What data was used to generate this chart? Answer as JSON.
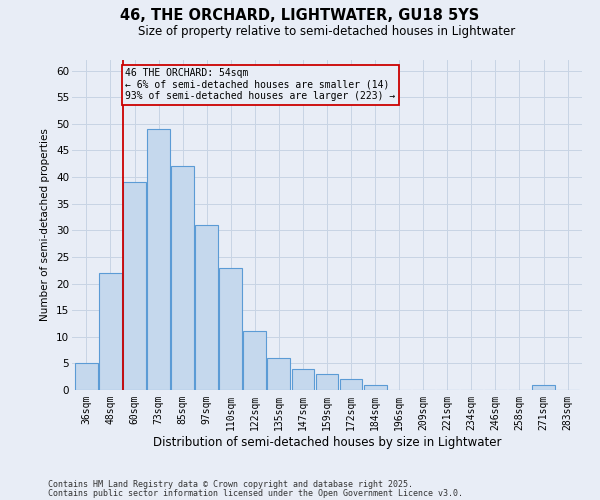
{
  "title": "46, THE ORCHARD, LIGHTWATER, GU18 5YS",
  "subtitle": "Size of property relative to semi-detached houses in Lightwater",
  "xlabel": "Distribution of semi-detached houses by size in Lightwater",
  "ylabel": "Number of semi-detached properties",
  "categories": [
    "36sqm",
    "48sqm",
    "60sqm",
    "73sqm",
    "85sqm",
    "97sqm",
    "110sqm",
    "122sqm",
    "135sqm",
    "147sqm",
    "159sqm",
    "172sqm",
    "184sqm",
    "196sqm",
    "209sqm",
    "221sqm",
    "234sqm",
    "246sqm",
    "258sqm",
    "271sqm",
    "283sqm"
  ],
  "values": [
    5,
    22,
    39,
    49,
    42,
    31,
    23,
    11,
    6,
    4,
    3,
    2,
    1,
    0,
    0,
    0,
    0,
    0,
    0,
    1,
    0
  ],
  "bar_color": "#c5d8ed",
  "bar_edge_color": "#5b9bd5",
  "grid_color": "#c8d4e4",
  "bg_color": "#e8edf6",
  "vline_x_index": 1.5,
  "annotation_text": "46 THE ORCHARD: 54sqm\n← 6% of semi-detached houses are smaller (14)\n93% of semi-detached houses are larger (223) →",
  "annotation_box_color": "#cc0000",
  "ylim": [
    0,
    62
  ],
  "yticks": [
    0,
    5,
    10,
    15,
    20,
    25,
    30,
    35,
    40,
    45,
    50,
    55,
    60
  ],
  "footnote1": "Contains HM Land Registry data © Crown copyright and database right 2025.",
  "footnote2": "Contains public sector information licensed under the Open Government Licence v3.0."
}
